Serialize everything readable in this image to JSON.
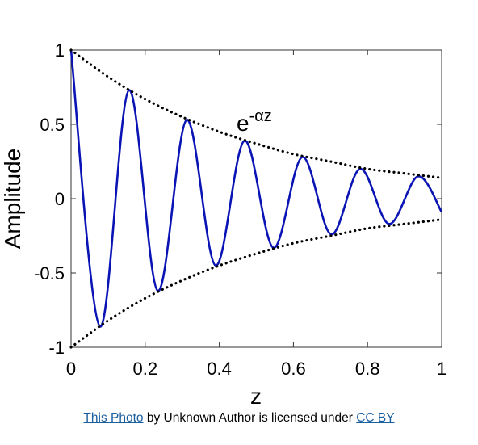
{
  "chart_data": {
    "type": "line",
    "title": "",
    "xlabel": "z",
    "ylabel": "Amplitude",
    "xlim": [
      0,
      1
    ],
    "ylim": [
      -1,
      1
    ],
    "x_ticks": [
      "0",
      "0.2",
      "0.4",
      "0.6",
      "0.8",
      "1"
    ],
    "y_ticks": [
      "1",
      "0.5",
      "0",
      "-0.5",
      "-1"
    ],
    "grid": false,
    "annotation": {
      "base": "e",
      "exponent": "-αz"
    },
    "series": [
      {
        "style": "solid",
        "color": "#0a14b4",
        "x": [
          0,
          0.078,
          0.156,
          0.234,
          0.312,
          0.39,
          0.468,
          0.546,
          0.624,
          0.702,
          0.78,
          0.858,
          0.936,
          1.0
        ],
        "y": [
          1,
          -0.86,
          0.73,
          -0.62,
          0.53,
          -0.45,
          0.39,
          -0.33,
          0.28,
          -0.24,
          0.2,
          -0.17,
          0.15,
          -0.09
        ]
      },
      {
        "style": "dotted",
        "color": "#000000",
        "x": [
          0,
          0.1,
          0.2,
          0.3,
          0.4,
          0.5,
          0.6,
          0.7,
          0.8,
          0.9,
          1.0
        ],
        "y": [
          1,
          0.82,
          0.67,
          0.55,
          0.45,
          0.37,
          0.3,
          0.25,
          0.2,
          0.17,
          0.14
        ]
      },
      {
        "style": "dotted",
        "color": "#000000",
        "x": [
          0,
          0.1,
          0.2,
          0.3,
          0.4,
          0.5,
          0.6,
          0.7,
          0.8,
          0.9,
          1.0
        ],
        "y": [
          -1,
          -0.82,
          -0.67,
          -0.55,
          -0.45,
          -0.37,
          -0.3,
          -0.25,
          -0.2,
          -0.17,
          -0.14
        ]
      }
    ]
  },
  "attribution": {
    "photo_link": "This Photo",
    "middle": " by Unknown Author is licensed under ",
    "license_link": "CC BY"
  }
}
